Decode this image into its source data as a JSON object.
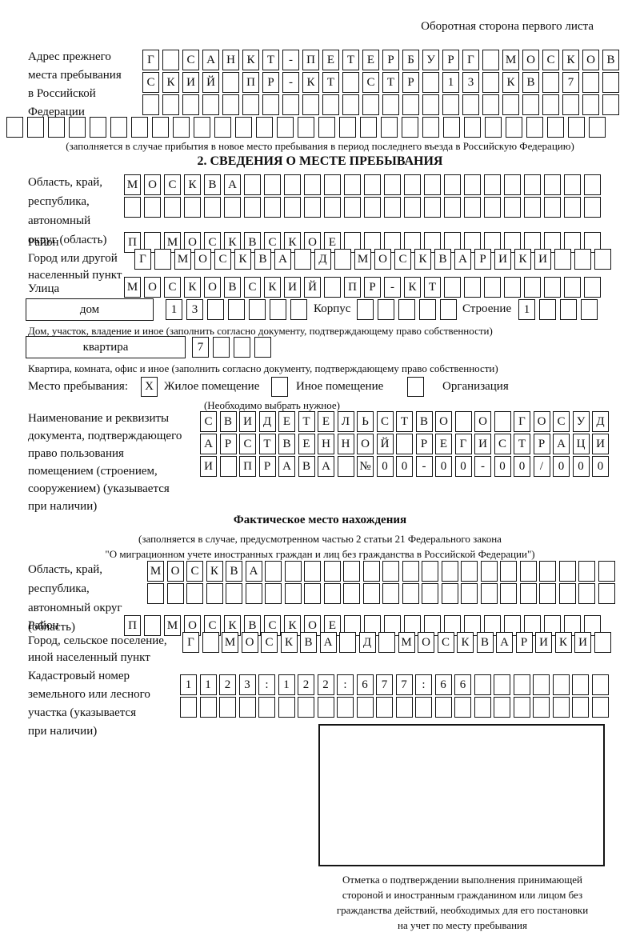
{
  "header": {
    "note": "Оборотная сторона первого листа"
  },
  "prev_address": {
    "label": "Адрес прежнего\nместа пребывания\nв Российской\nФедерации",
    "row1": [
      "Г",
      "",
      "С",
      "А",
      "Н",
      "К",
      "Т",
      "-",
      "П",
      "Е",
      "Т",
      "Е",
      "Р",
      "Б",
      "У",
      "Р",
      "Г",
      "",
      "М",
      "О",
      "С",
      "К",
      "О",
      "В"
    ],
    "row2": [
      "С",
      "К",
      "И",
      "Й",
      "",
      "П",
      "Р",
      "-",
      "К",
      "Т",
      "",
      "С",
      "Т",
      "Р",
      "",
      "1",
      "3",
      "",
      "К",
      "В",
      "",
      "7",
      "",
      ""
    ],
    "row3": [
      "",
      "",
      "",
      "",
      "",
      "",
      "",
      "",
      "",
      "",
      "",
      "",
      "",
      "",
      "",
      "",
      "",
      "",
      "",
      "",
      "",
      "",
      "",
      ""
    ],
    "row4": [
      "",
      "",
      "",
      "",
      "",
      "",
      "",
      "",
      "",
      "",
      "",
      "",
      "",
      "",
      "",
      "",
      "",
      "",
      "",
      "",
      "",
      "",
      "",
      "",
      "",
      "",
      "",
      "",
      ""
    ],
    "note": "(заполняется в случае прибытия в новое место пребывания в период последнего въезда в Российскую Федерацию)"
  },
  "section2": {
    "title": "2. СВЕДЕНИЯ О МЕСТЕ ПРЕБЫВАНИЯ",
    "region": {
      "label": "Область, край,\nреспублика,\nавтономный\nокруг (область)",
      "row1": [
        "М",
        "О",
        "С",
        "К",
        "В",
        "А",
        "",
        "",
        "",
        "",
        "",
        "",
        "",
        "",
        "",
        "",
        "",
        "",
        "",
        "",
        "",
        "",
        "",
        ""
      ],
      "row2": [
        "",
        "",
        "",
        "",
        "",
        "",
        "",
        "",
        "",
        "",
        "",
        "",
        "",
        "",
        "",
        "",
        "",
        "",
        "",
        "",
        "",
        "",
        "",
        ""
      ]
    },
    "district": {
      "label": "Район",
      "row": [
        "П",
        "",
        "М",
        "О",
        "С",
        "К",
        "В",
        "С",
        "К",
        "О",
        "Е",
        "",
        "",
        "",
        "",
        "",
        "",
        "",
        "",
        "",
        "",
        "",
        "",
        ""
      ]
    },
    "city": {
      "label": "Город или другой\nнаселенный пункт",
      "row": [
        "Г",
        "",
        "М",
        "О",
        "С",
        "К",
        "В",
        "А",
        "",
        "Д",
        "",
        "М",
        "О",
        "С",
        "К",
        "В",
        "А",
        "Р",
        "И",
        "К",
        "И",
        "",
        "",
        ""
      ]
    },
    "street": {
      "label": "Улица",
      "row": [
        "М",
        "О",
        "С",
        "К",
        "О",
        "В",
        "С",
        "К",
        "И",
        "Й",
        "",
        "П",
        "Р",
        "-",
        "К",
        "Т",
        "",
        "",
        "",
        "",
        "",
        "",
        "",
        ""
      ]
    },
    "house": {
      "name_label": "дом",
      "digits": [
        "1",
        "3",
        "",
        "",
        "",
        "",
        ""
      ],
      "korpus_label": "Корпус",
      "korpus_digits": [
        "",
        "",
        "",
        "",
        ""
      ],
      "stroenie_label": "Строение",
      "stroenie_digits": [
        "1",
        "",
        "",
        ""
      ],
      "caption": "Дом, участок, владение и иное (заполнить согласно документу, подтверждающему право собственности)"
    },
    "apartment": {
      "name_label": "квартира",
      "digits": [
        "7",
        "",
        "",
        ""
      ],
      "caption": "Квартира, комната, офис и иное (заполнить согласно документу, подтверждающему право собственности)"
    },
    "stay_type": {
      "label": "Место пребывания:",
      "options": [
        {
          "mark": "X",
          "label": "Жилое помещение"
        },
        {
          "mark": "",
          "label": "Иное помещение"
        },
        {
          "mark": "",
          "label": "Организация"
        }
      ],
      "note": "(Необходимо выбрать нужное)"
    },
    "document": {
      "label": "Наименование и реквизиты\nдокумента, подтверждающего\nправо пользования\nпомещением (строением,\nсооружением) (указывается\nпри наличии)",
      "row1": [
        "С",
        "В",
        "И",
        "Д",
        "Е",
        "Т",
        "Е",
        "Л",
        "Ь",
        "С",
        "Т",
        "В",
        "О",
        "",
        "О",
        "",
        "Г",
        "О",
        "С",
        "У",
        "Д"
      ],
      "row2": [
        "А",
        "Р",
        "С",
        "Т",
        "В",
        "Е",
        "Н",
        "Н",
        "О",
        "Й",
        "",
        "Р",
        "Е",
        "Г",
        "И",
        "С",
        "Т",
        "Р",
        "А",
        "Ц",
        "И"
      ],
      "row3": [
        "И",
        "",
        "П",
        "Р",
        "А",
        "В",
        "А",
        "",
        "№",
        "0",
        "0",
        "-",
        "0",
        "0",
        "-",
        "0",
        "0",
        "/",
        "0",
        "0",
        "0"
      ]
    }
  },
  "actual": {
    "title": "Фактическое место нахождения",
    "note": "(заполняется в случае, предусмотренном частью 2 статьи 21 Федерального закона\n\"О миграционном учете иностранных граждан и лиц без гражданства в Российской Федерации\")",
    "region": {
      "label": "Область, край,\nреспублика,\nавтономный округ\n(область)",
      "row1": [
        "М",
        "О",
        "С",
        "К",
        "В",
        "А",
        "",
        "",
        "",
        "",
        "",
        "",
        "",
        "",
        "",
        "",
        "",
        "",
        "",
        "",
        "",
        "",
        "",
        ""
      ],
      "row2": [
        "",
        "",
        "",
        "",
        "",
        "",
        "",
        "",
        "",
        "",
        "",
        "",
        "",
        "",
        "",
        "",
        "",
        "",
        "",
        "",
        "",
        "",
        "",
        ""
      ]
    },
    "district": {
      "label": "Район",
      "row": [
        "П",
        "",
        "М",
        "О",
        "С",
        "К",
        "В",
        "С",
        "К",
        "О",
        "Е",
        "",
        "",
        "",
        "",
        "",
        "",
        "",
        "",
        "",
        "",
        "",
        "",
        ""
      ]
    },
    "settlement": {
      "label": "Город, сельское поселение,\nиной населенный пункт",
      "row": [
        "Г",
        "",
        "М",
        "О",
        "С",
        "К",
        "В",
        "А",
        "",
        "Д",
        "",
        "М",
        "О",
        "С",
        "К",
        "В",
        "А",
        "Р",
        "И",
        "К",
        "И",
        ""
      ]
    },
    "cadastral": {
      "label": "Кадастровый номер\nземельного или лесного\nучастка (указывается\nпри наличии)",
      "row1": [
        "1",
        "1",
        "2",
        "3",
        ":",
        "1",
        "2",
        "2",
        ":",
        "6",
        "7",
        "7",
        ":",
        "6",
        "6",
        "",
        "",
        "",
        "",
        "",
        "",
        ""
      ],
      "row2": [
        "",
        "",
        "",
        "",
        "",
        "",
        "",
        "",
        "",
        "",
        "",
        "",
        "",
        "",
        "",
        "",
        "",
        "",
        "",
        "",
        "",
        ""
      ]
    },
    "stamp_caption": "Отметка о подтверждении выполнения принимающей\nстороной и иностранным гражданином или лицом без\nгражданства действий, необходимых для его постановки\nна учет по месту пребывания"
  }
}
